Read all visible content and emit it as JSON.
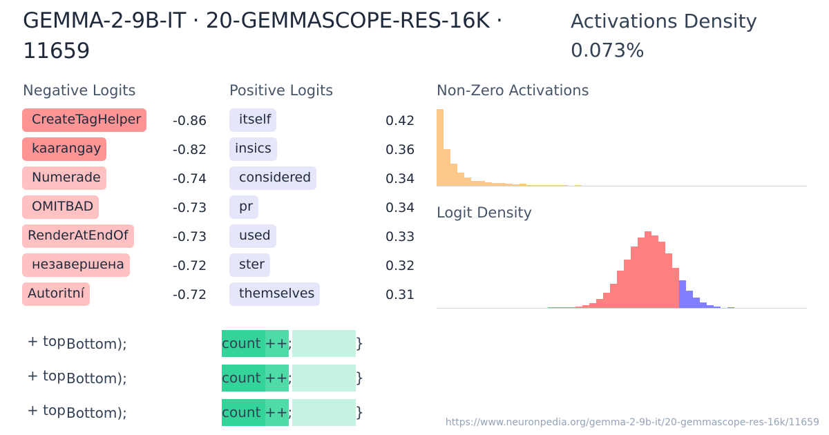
{
  "header": {
    "title": "GEMMA-2-9B-IT · 20-GEMMASCOPE-RES-16K · 11659",
    "density_label": "Activations Density",
    "density_value": "0.073%"
  },
  "negative_logits": {
    "title": "Negative Logits",
    "items": [
      {
        "token": " CreateTagHelper",
        "value": "-0.86",
        "strength": "strong"
      },
      {
        "token": " kaarangay",
        "value": "-0.82",
        "strength": "strong"
      },
      {
        "token": " Numerade",
        "value": "-0.74",
        "strength": "light"
      },
      {
        "token": " OMITBAD",
        "value": "-0.73",
        "strength": "light"
      },
      {
        "token": "RenderAtEndOf",
        "value": "-0.73",
        "strength": "light"
      },
      {
        "token": " незавершена",
        "value": "-0.72",
        "strength": "light"
      },
      {
        "token": "Autoritní",
        "value": "-0.72",
        "strength": "light"
      }
    ]
  },
  "positive_logits": {
    "title": "Positive Logits",
    "items": [
      {
        "token": " itself",
        "value": "0.42"
      },
      {
        "token": "insics",
        "value": "0.36"
      },
      {
        "token": " considered",
        "value": "0.34"
      },
      {
        "token": " pr",
        "value": "0.34"
      },
      {
        "token": " used",
        "value": "0.33"
      },
      {
        "token": " ster",
        "value": "0.32"
      },
      {
        "token": " themselves",
        "value": "0.31"
      }
    ]
  },
  "examples": [
    {
      "left": "+ top",
      "left2": "Bottom);",
      "tok1": "count",
      "tok2": "++;",
      "tail": "}"
    },
    {
      "left": "+ top",
      "left2": "Bottom);",
      "tok1": "count",
      "tok2": "++;",
      "tail": "}"
    },
    {
      "left": "+ top",
      "left2": "Bottom);",
      "tok1": "count",
      "tok2": "++;",
      "tail": "}"
    }
  ],
  "chart_data": [
    {
      "type": "bar",
      "title": "Non-Zero Activations",
      "values": [
        111,
        53,
        32,
        19,
        12,
        7,
        7,
        5,
        4,
        4,
        3,
        2,
        3,
        1,
        1,
        1,
        1,
        1,
        1,
        0,
        1
      ],
      "color": "#fdc98a"
    },
    {
      "type": "bar",
      "title": "Logit Density",
      "values": [
        0.3,
        0.3,
        0.3,
        1,
        2,
        4,
        7,
        13,
        22,
        35,
        54,
        70,
        89,
        102,
        111,
        105,
        96,
        79,
        58,
        40,
        25,
        15,
        8,
        4,
        2,
        0,
        0.5
      ],
      "negative_count": 19,
      "colors": {
        "negative": "#ff8080",
        "positive": "#8080ff"
      }
    }
  ],
  "footer": {
    "url": "https://www.neuronpedia.org/gemma-2-9b-it/20-gemmascope-res-16k/11659"
  },
  "colors": {
    "neg_strong": "#ff9494",
    "neg_light": "#ffc1c1",
    "pos": "#e6e6fa",
    "act_strong": "#34d399",
    "act_mid": "#4fdba7",
    "act_light": "#c6f2e1"
  }
}
